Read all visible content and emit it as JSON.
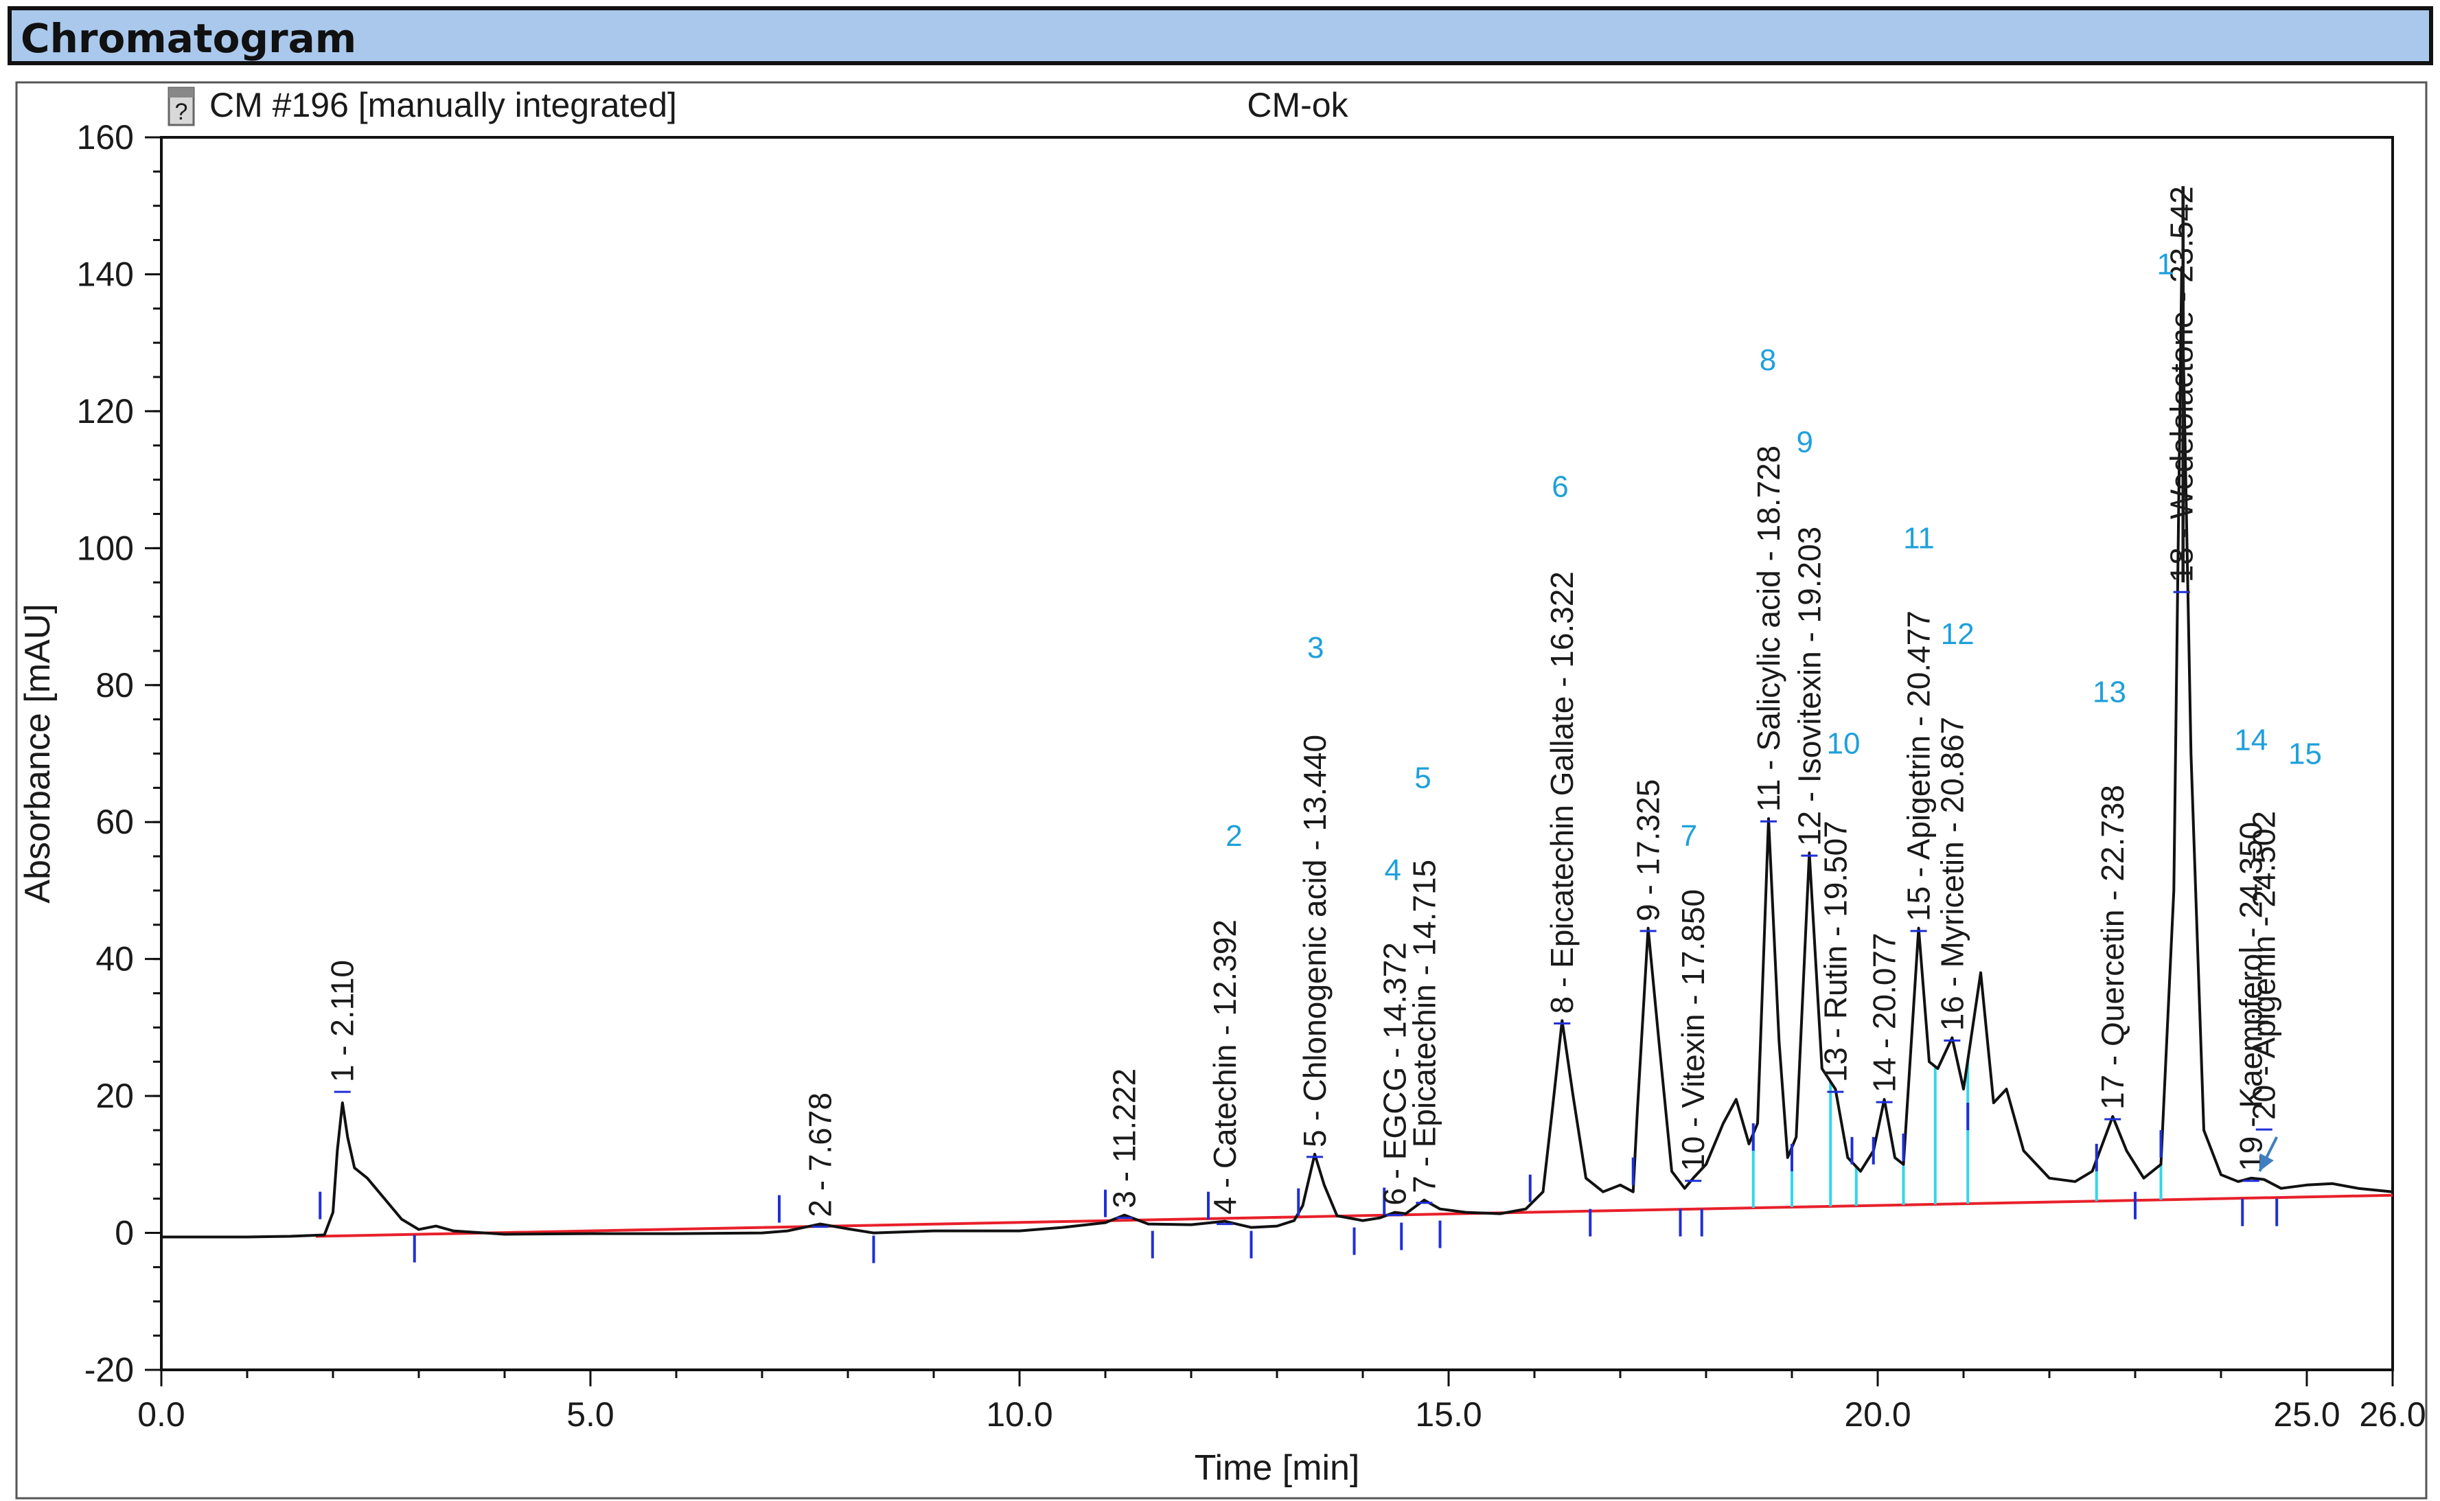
{
  "header": {
    "title": "Chromatogram",
    "bar_color": "#a9c8ec"
  },
  "plot": {
    "run_label": "CM #196 [manually integrated]",
    "sample_label": "CM-ok",
    "run_icon": "document-question-icon"
  },
  "chart_data": {
    "type": "line",
    "title": "",
    "xlabel": "Time [min]",
    "ylabel": "Absorbance [mAU]",
    "xlim": [
      0,
      26
    ],
    "ylim": [
      -20,
      160
    ],
    "x_ticks": [
      {
        "value": 0,
        "label": "0.0"
      },
      {
        "value": 5,
        "label": "5.0"
      },
      {
        "value": 10,
        "label": "10.0"
      },
      {
        "value": 15,
        "label": "15.0"
      },
      {
        "value": 20,
        "label": "20.0"
      },
      {
        "value": 25,
        "label": "25.0"
      },
      {
        "value": 26,
        "label": "26.0"
      }
    ],
    "y_ticks": [
      {
        "value": -20,
        "label": "-20"
      },
      {
        "value": 0,
        "label": "0"
      },
      {
        "value": 20,
        "label": "20"
      },
      {
        "value": 40,
        "label": "40"
      },
      {
        "value": 60,
        "label": "60"
      },
      {
        "value": 80,
        "label": "80"
      },
      {
        "value": 100,
        "label": "100"
      },
      {
        "value": 120,
        "label": "120"
      },
      {
        "value": 140,
        "label": "140"
      },
      {
        "value": 160,
        "label": "160"
      }
    ],
    "grid": false,
    "colors": {
      "trace": "#111111",
      "baseline": "#e8202a",
      "integration_marks": "#1f2fd6",
      "drop_lines": "#33d6e8",
      "annotation_numbers": "#1ea0dc"
    },
    "series": [
      {
        "kind": "chromatogram-trace",
        "points": [
          [
            0.0,
            -0.6
          ],
          [
            1.0,
            -0.6
          ],
          [
            1.5,
            -0.5
          ],
          [
            1.9,
            -0.3
          ],
          [
            2.0,
            3
          ],
          [
            2.05,
            12
          ],
          [
            2.11,
            19
          ],
          [
            2.17,
            14
          ],
          [
            2.25,
            9.5
          ],
          [
            2.4,
            8
          ],
          [
            2.6,
            5
          ],
          [
            2.8,
            2
          ],
          [
            3.0,
            0.5
          ],
          [
            3.2,
            1
          ],
          [
            3.4,
            0.3
          ],
          [
            4.0,
            -0.2
          ],
          [
            5.0,
            -0.1
          ],
          [
            6.0,
            -0.1
          ],
          [
            7.0,
            0
          ],
          [
            7.3,
            0.3
          ],
          [
            7.678,
            1.3
          ],
          [
            8.0,
            0.6
          ],
          [
            8.3,
            0
          ],
          [
            9.0,
            0.3
          ],
          [
            10.0,
            0.3
          ],
          [
            10.5,
            0.8
          ],
          [
            11.0,
            1.5
          ],
          [
            11.222,
            2.6
          ],
          [
            11.5,
            1.3
          ],
          [
            12.0,
            1.2
          ],
          [
            12.392,
            1.7
          ],
          [
            12.7,
            0.8
          ],
          [
            13.0,
            1
          ],
          [
            13.2,
            1.8
          ],
          [
            13.3,
            4
          ],
          [
            13.44,
            11.5
          ],
          [
            13.55,
            7
          ],
          [
            13.7,
            2.5
          ],
          [
            14.0,
            1.8
          ],
          [
            14.2,
            2.2
          ],
          [
            14.372,
            3
          ],
          [
            14.5,
            2.8
          ],
          [
            14.715,
            4.8
          ],
          [
            14.9,
            3.5
          ],
          [
            15.2,
            3
          ],
          [
            15.6,
            2.8
          ],
          [
            15.9,
            3.5
          ],
          [
            16.1,
            6
          ],
          [
            16.2,
            17
          ],
          [
            16.322,
            31
          ],
          [
            16.45,
            20
          ],
          [
            16.6,
            8
          ],
          [
            16.8,
            6
          ],
          [
            17.0,
            7
          ],
          [
            17.15,
            6
          ],
          [
            17.2,
            18
          ],
          [
            17.325,
            44.5
          ],
          [
            17.45,
            28
          ],
          [
            17.6,
            9
          ],
          [
            17.75,
            6.5
          ],
          [
            17.85,
            8
          ],
          [
            18.0,
            10
          ],
          [
            18.2,
            16
          ],
          [
            18.35,
            19.5
          ],
          [
            18.5,
            13
          ],
          [
            18.6,
            16
          ],
          [
            18.728,
            60.5
          ],
          [
            18.85,
            28
          ],
          [
            18.95,
            11
          ],
          [
            19.05,
            14
          ],
          [
            19.203,
            55.5
          ],
          [
            19.35,
            24
          ],
          [
            19.507,
            21
          ],
          [
            19.65,
            11
          ],
          [
            19.8,
            9
          ],
          [
            19.95,
            12
          ],
          [
            20.077,
            19.5
          ],
          [
            20.2,
            11
          ],
          [
            20.3,
            10
          ],
          [
            20.477,
            44.5
          ],
          [
            20.6,
            25
          ],
          [
            20.7,
            24
          ],
          [
            20.867,
            28.5
          ],
          [
            21.0,
            21
          ],
          [
            21.2,
            38
          ],
          [
            21.35,
            19
          ],
          [
            21.5,
            21
          ],
          [
            21.7,
            12
          ],
          [
            22.0,
            8
          ],
          [
            22.3,
            7.5
          ],
          [
            22.5,
            9
          ],
          [
            22.738,
            17
          ],
          [
            22.9,
            12
          ],
          [
            23.1,
            8
          ],
          [
            23.3,
            10
          ],
          [
            23.45,
            50
          ],
          [
            23.542,
            141
          ],
          [
            23.65,
            70
          ],
          [
            23.8,
            15
          ],
          [
            24.0,
            8.5
          ],
          [
            24.2,
            7.5
          ],
          [
            24.35,
            8
          ],
          [
            24.502,
            7.8
          ],
          [
            24.7,
            6.5
          ],
          [
            25.0,
            7
          ],
          [
            25.3,
            7.2
          ],
          [
            25.6,
            6.5
          ],
          [
            26.0,
            6
          ]
        ]
      },
      {
        "kind": "integration-baseline",
        "points": [
          [
            1.8,
            -0.5
          ],
          [
            26.0,
            5.5
          ]
        ]
      }
    ],
    "peaks": [
      {
        "x": 2.11,
        "label": "1 - 2.110",
        "label_y": 22
      },
      {
        "x": 7.678,
        "label": "2 - 7.678",
        "label_y": 2.3
      },
      {
        "x": 11.222,
        "label": "3 - 11.222",
        "label_y": 3.6
      },
      {
        "x": 12.392,
        "label": "4 - Catechin - 12.392",
        "label_y": 2.7
      },
      {
        "x": 13.44,
        "label": "5 - Chlonogenic acid - 13.440",
        "label_y": 12.5
      },
      {
        "x": 14.372,
        "label": "6 - EGCG - 14.372",
        "label_y": 4
      },
      {
        "x": 14.715,
        "label": "7 - Epicatechin - 14.715",
        "label_y": 5.8
      },
      {
        "x": 16.322,
        "label": "8 - Epicatechin Gallate - 16.322",
        "label_y": 32
      },
      {
        "x": 17.325,
        "label": "9 - 17.325",
        "label_y": 45.5
      },
      {
        "x": 17.85,
        "label": "10 - Vitexin - 17.850",
        "label_y": 9
      },
      {
        "x": 18.728,
        "label": "11 - Salicylic acid - 18.728",
        "label_y": 61.5
      },
      {
        "x": 19.203,
        "label": "12 - Isovitexin - 19.203",
        "label_y": 56.5
      },
      {
        "x": 19.507,
        "label": "13 - Rutin - 19.507",
        "label_y": 22
      },
      {
        "x": 20.077,
        "label": "14 - 20.077",
        "label_y": 20.5
      },
      {
        "x": 20.477,
        "label": "15 - Apigetrin - 20.477",
        "label_y": 45.5
      },
      {
        "x": 20.867,
        "label": "16 - Myricetin - 20.867",
        "label_y": 29.5
      },
      {
        "x": 22.738,
        "label": "17 - Quercetin - 22.738",
        "label_y": 18
      },
      {
        "x": 23.542,
        "label": "18 - Wedelolactone - 23.542",
        "label_y": 95,
        "strikethrough": true
      },
      {
        "x": 24.35,
        "label": "19 - Kaempferol - 24.350",
        "label_y": 9
      },
      {
        "x": 24.502,
        "label": "20 - Apigenin - 24.502",
        "label_y": 16.5
      }
    ],
    "annotations": [
      {
        "text": "1",
        "x": 23.35,
        "y": 140
      },
      {
        "text": "2",
        "x": 12.5,
        "y": 56.5
      },
      {
        "text": "3",
        "x": 13.45,
        "y": 84
      },
      {
        "text": "4",
        "x": 14.35,
        "y": 51.5
      },
      {
        "text": "5",
        "x": 14.7,
        "y": 65
      },
      {
        "text": "6",
        "x": 16.3,
        "y": 107.5
      },
      {
        "text": "7",
        "x": 17.8,
        "y": 56.5
      },
      {
        "text": "8",
        "x": 18.72,
        "y": 126
      },
      {
        "text": "9",
        "x": 19.15,
        "y": 114
      },
      {
        "text": "10",
        "x": 19.6,
        "y": 70
      },
      {
        "text": "11",
        "x": 20.48,
        "y": 100
      },
      {
        "text": "12",
        "x": 20.93,
        "y": 86
      },
      {
        "text": "13",
        "x": 22.7,
        "y": 77.5
      },
      {
        "text": "14",
        "x": 24.35,
        "y": 70.5
      },
      {
        "text": "15",
        "x": 24.98,
        "y": 68.5
      }
    ],
    "pointer_arrow": {
      "from": [
        24.65,
        14
      ],
      "to": [
        24.45,
        9
      ]
    },
    "integration_marks": [
      {
        "x": 1.85,
        "y": 2,
        "dir": "up"
      },
      {
        "x": 2.95,
        "y": -0.3,
        "dir": "down"
      },
      {
        "x": 7.2,
        "y": 1.5,
        "dir": "up"
      },
      {
        "x": 8.3,
        "y": -0.4,
        "dir": "down"
      },
      {
        "x": 11.0,
        "y": 2.3,
        "dir": "up"
      },
      {
        "x": 11.55,
        "y": 0.3,
        "dir": "down"
      },
      {
        "x": 12.2,
        "y": 2,
        "dir": "up"
      },
      {
        "x": 12.7,
        "y": 0.3,
        "dir": "down"
      },
      {
        "x": 13.25,
        "y": 2.5,
        "dir": "up"
      },
      {
        "x": 13.9,
        "y": 0.8,
        "dir": "down"
      },
      {
        "x": 14.25,
        "y": 2.6,
        "dir": "up"
      },
      {
        "x": 14.45,
        "y": 1.5,
        "dir": "down"
      },
      {
        "x": 14.9,
        "y": 1.8,
        "dir": "down"
      },
      {
        "x": 15.95,
        "y": 4.5,
        "dir": "up"
      },
      {
        "x": 16.65,
        "y": 3.5,
        "dir": "down"
      },
      {
        "x": 17.15,
        "y": 7,
        "dir": "up"
      },
      {
        "x": 17.7,
        "y": 3.5,
        "dir": "down"
      },
      {
        "x": 17.95,
        "y": 3.5,
        "dir": "down"
      },
      {
        "x": 18.55,
        "y": 12,
        "dir": "up"
      },
      {
        "x": 19.0,
        "y": 9,
        "dir": "up"
      },
      {
        "x": 19.7,
        "y": 10,
        "dir": "up"
      },
      {
        "x": 19.95,
        "y": 10,
        "dir": "up"
      },
      {
        "x": 20.3,
        "y": 10.5,
        "dir": "up"
      },
      {
        "x": 21.05,
        "y": 15,
        "dir": "up"
      },
      {
        "x": 22.55,
        "y": 9,
        "dir": "up"
      },
      {
        "x": 23.0,
        "y": 6,
        "dir": "down"
      },
      {
        "x": 23.3,
        "y": 11,
        "dir": "up"
      },
      {
        "x": 24.25,
        "y": 5,
        "dir": "down"
      },
      {
        "x": 24.65,
        "y": 5,
        "dir": "down"
      }
    ],
    "drop_lines": [
      18.55,
      19.0,
      19.45,
      19.75,
      20.3,
      20.67,
      21.05,
      22.55,
      23.3
    ]
  }
}
